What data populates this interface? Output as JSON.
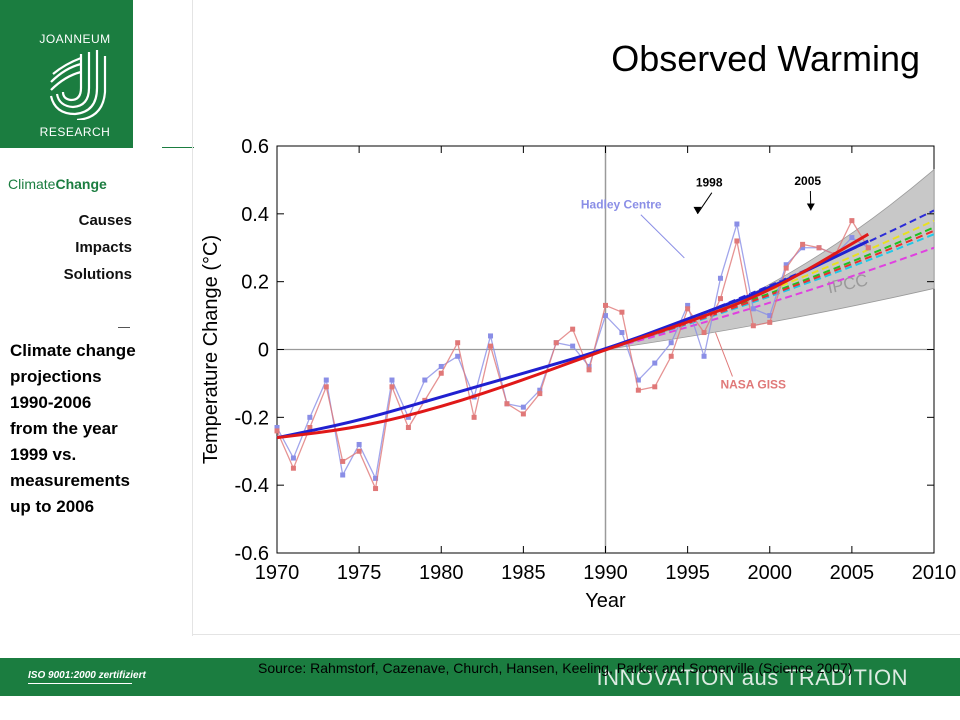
{
  "logo": {
    "line1": "JOANNEUM",
    "line2": "RESEARCH"
  },
  "sidebar": {
    "section_prefix": "Climate",
    "section_suffix": "Change",
    "nav": [
      "Causes",
      "Impacts",
      "Solutions"
    ],
    "description": [
      "Climate change",
      "projections",
      "1990-2006",
      "from the year",
      "1999 vs.",
      "measurements",
      "up to 2006"
    ]
  },
  "slide_title": "Observed Warming",
  "footer": {
    "iso": "ISO 9001:2000 zertifiziert",
    "tagline": "INNOVATION aus TRADITION",
    "source": "Source: Rahmstorf, Cazenave, Church, Hansen, Keeling, Parker and Somerville (Science 2007)"
  },
  "colors": {
    "brand_green": "#1b7d40",
    "hadley": "#8a8ee6",
    "nasa": "#e07878",
    "trend_blue": "#2020d0",
    "trend_red": "#e01818",
    "ipcc_band": "#c8c8c8"
  },
  "chart_data": {
    "type": "line",
    "xlabel": "Year",
    "ylabel": "Temperature Change (°C)",
    "xlim": [
      1970,
      2010
    ],
    "ylim": [
      -0.6,
      0.6
    ],
    "xticks": [
      1970,
      1975,
      1980,
      1985,
      1990,
      1995,
      2000,
      2005,
      2010
    ],
    "yticks": [
      -0.6,
      -0.4,
      -0.2,
      0,
      0.2,
      0.4,
      0.6
    ],
    "ytick_labels": [
      "-0.6",
      "-0.4",
      "-0.2",
      "0",
      "0.2",
      "0.4",
      "0.6"
    ],
    "vertical_line_x": 1990,
    "series": [
      {
        "name": "Hadley Centre",
        "style": "markers-line",
        "x": [
          1970,
          1971,
          1972,
          1973,
          1974,
          1975,
          1976,
          1977,
          1978,
          1979,
          1980,
          1981,
          1982,
          1983,
          1984,
          1985,
          1986,
          1987,
          1988,
          1989,
          1990,
          1991,
          1992,
          1993,
          1994,
          1995,
          1996,
          1997,
          1998,
          1999,
          2000,
          2001,
          2002,
          2003,
          2004,
          2005,
          2006
        ],
        "values": [
          -0.23,
          -0.32,
          -0.2,
          -0.09,
          -0.37,
          -0.28,
          -0.38,
          -0.09,
          -0.2,
          -0.09,
          -0.05,
          -0.02,
          -0.14,
          0.04,
          -0.16,
          -0.17,
          -0.12,
          0.02,
          0.01,
          -0.05,
          0.1,
          0.05,
          -0.09,
          -0.04,
          0.02,
          0.13,
          -0.02,
          0.21,
          0.37,
          0.12,
          0.1,
          0.25,
          0.3,
          0.3,
          0.28,
          0.33,
          0.3
        ]
      },
      {
        "name": "NASA GISS",
        "style": "markers-line",
        "x": [
          1970,
          1971,
          1972,
          1973,
          1974,
          1975,
          1976,
          1977,
          1978,
          1979,
          1980,
          1981,
          1982,
          1983,
          1984,
          1985,
          1986,
          1987,
          1988,
          1989,
          1990,
          1991,
          1992,
          1993,
          1994,
          1995,
          1996,
          1997,
          1998,
          1999,
          2000,
          2001,
          2002,
          2003,
          2004,
          2005,
          2006
        ],
        "values": [
          -0.24,
          -0.35,
          -0.23,
          -0.11,
          -0.33,
          -0.3,
          -0.41,
          -0.11,
          -0.23,
          -0.15,
          -0.07,
          0.02,
          -0.2,
          0.01,
          -0.16,
          -0.19,
          -0.13,
          0.02,
          0.06,
          -0.06,
          0.13,
          0.11,
          -0.12,
          -0.11,
          -0.02,
          0.12,
          0.05,
          0.15,
          0.32,
          0.07,
          0.08,
          0.24,
          0.31,
          0.3,
          0.28,
          0.38,
          0.3
        ]
      },
      {
        "name": "trend (blue)",
        "style": "smooth",
        "x": [
          1970,
          1975,
          1980,
          1985,
          1990,
          1995,
          2000,
          2006
        ],
        "values": [
          -0.26,
          -0.21,
          -0.14,
          -0.07,
          0.0,
          0.09,
          0.18,
          0.32
        ]
      },
      {
        "name": "trend (red)",
        "style": "smooth",
        "x": [
          1970,
          1975,
          1980,
          1985,
          1990,
          1995,
          2000,
          2006
        ],
        "values": [
          -0.26,
          -0.23,
          -0.17,
          -0.09,
          0.0,
          0.08,
          0.17,
          0.34
        ]
      }
    ],
    "ipcc_band": {
      "label": "IPCC",
      "x_start": 1990,
      "x_end": 2010,
      "upper_end": 0.53,
      "lower_end": 0.18
    },
    "projections": [
      {
        "color": "#2b2bd8",
        "end": 0.41
      },
      {
        "color": "#e8e020",
        "end": 0.38
      },
      {
        "color": "#20c020",
        "end": 0.36
      },
      {
        "color": "#20c8e8",
        "end": 0.34
      },
      {
        "color": "#e83030",
        "end": 0.35
      },
      {
        "color": "#e040e0",
        "end": 0.3
      }
    ],
    "annotations": [
      {
        "text": "Hadley Centre",
        "color": "#8a8ee6",
        "x": 1988.5,
        "y": 0.415,
        "arrow_to": [
          1994.8,
          0.27
        ]
      },
      {
        "text": "NASA GISS",
        "color": "#e07878",
        "x": 1997,
        "y": -0.115,
        "arrow_to": [
          1996.7,
          0.05
        ]
      },
      {
        "text": "1998",
        "color": "#000000",
        "x": 1995.5,
        "y": 0.48,
        "arrow_to": [
          1995.6,
          0.4
        ]
      },
      {
        "text": "2005",
        "color": "#000000",
        "x": 2001.5,
        "y": 0.485,
        "arrow_to": [
          2002.5,
          0.41
        ]
      }
    ]
  }
}
